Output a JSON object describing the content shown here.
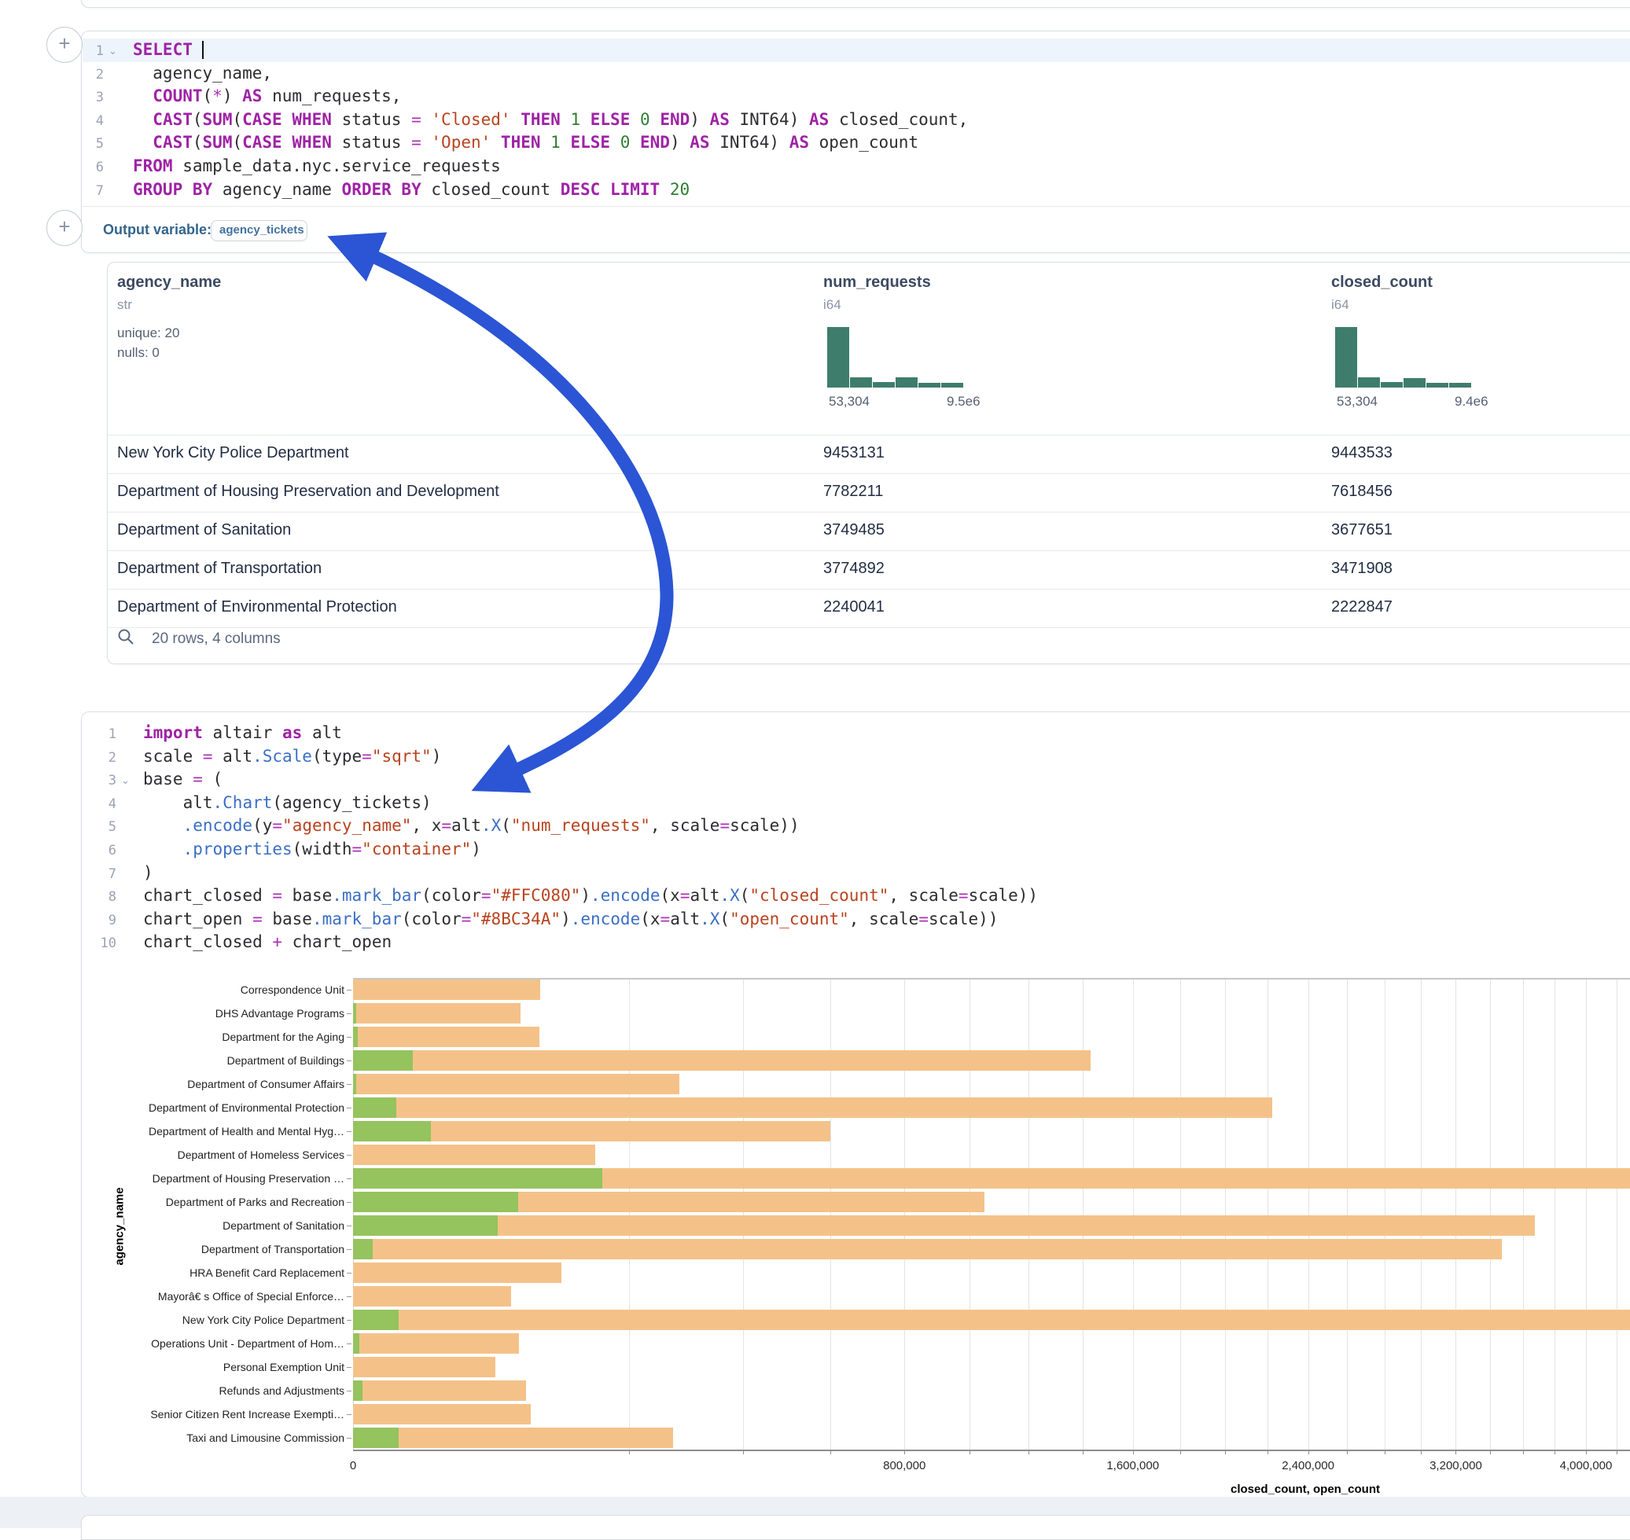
{
  "ui": {
    "plus_button_label": "+",
    "output_variable_label": "Output variable:",
    "output_variable_value": "agency_tickets",
    "table_footer": "20 rows, 4 columns",
    "annotation_arrow_color": "#2B55D4"
  },
  "sql_cell": {
    "line_numbers": [
      "1",
      "2",
      "3",
      "4",
      "5",
      "6",
      "7"
    ],
    "lines": [
      [
        [
          "k",
          "SELECT"
        ],
        [
          "d",
          " "
        ]
      ],
      [
        [
          "d",
          "  agency_name,"
        ]
      ],
      [
        [
          "d",
          "  "
        ],
        [
          "k",
          "COUNT"
        ],
        [
          "d",
          "("
        ],
        [
          "o",
          "*"
        ],
        [
          "d",
          ") "
        ],
        [
          "k",
          "AS"
        ],
        [
          "d",
          " num_requests,"
        ]
      ],
      [
        [
          "d",
          "  "
        ],
        [
          "k",
          "CAST"
        ],
        [
          "d",
          "("
        ],
        [
          "k",
          "SUM"
        ],
        [
          "d",
          "("
        ],
        [
          "k",
          "CASE"
        ],
        [
          "d",
          " "
        ],
        [
          "k",
          "WHEN"
        ],
        [
          "d",
          " status "
        ],
        [
          "o",
          "="
        ],
        [
          "d",
          " "
        ],
        [
          "s",
          "'Closed'"
        ],
        [
          "d",
          " "
        ],
        [
          "k",
          "THEN"
        ],
        [
          "d",
          " "
        ],
        [
          "n",
          "1"
        ],
        [
          "d",
          " "
        ],
        [
          "k",
          "ELSE"
        ],
        [
          "d",
          " "
        ],
        [
          "n",
          "0"
        ],
        [
          "d",
          " "
        ],
        [
          "k",
          "END"
        ],
        [
          "d",
          ") "
        ],
        [
          "k",
          "AS"
        ],
        [
          "d",
          " INT64) "
        ],
        [
          "k",
          "AS"
        ],
        [
          "d",
          " closed_count,"
        ]
      ],
      [
        [
          "d",
          "  "
        ],
        [
          "k",
          "CAST"
        ],
        [
          "d",
          "("
        ],
        [
          "k",
          "SUM"
        ],
        [
          "d",
          "("
        ],
        [
          "k",
          "CASE"
        ],
        [
          "d",
          " "
        ],
        [
          "k",
          "WHEN"
        ],
        [
          "d",
          " status "
        ],
        [
          "o",
          "="
        ],
        [
          "d",
          " "
        ],
        [
          "s",
          "'Open'"
        ],
        [
          "d",
          " "
        ],
        [
          "k",
          "THEN"
        ],
        [
          "d",
          " "
        ],
        [
          "n",
          "1"
        ],
        [
          "d",
          " "
        ],
        [
          "k",
          "ELSE"
        ],
        [
          "d",
          " "
        ],
        [
          "n",
          "0"
        ],
        [
          "d",
          " "
        ],
        [
          "k",
          "END"
        ],
        [
          "d",
          ") "
        ],
        [
          "k",
          "AS"
        ],
        [
          "d",
          " INT64) "
        ],
        [
          "k",
          "AS"
        ],
        [
          "d",
          " open_count"
        ]
      ],
      [
        [
          "k",
          "FROM"
        ],
        [
          "d",
          " sample_data.nyc.service_requests"
        ]
      ],
      [
        [
          "k",
          "GROUP"
        ],
        [
          "d",
          " "
        ],
        [
          "k",
          "BY"
        ],
        [
          "d",
          " agency_name "
        ],
        [
          "k",
          "ORDER"
        ],
        [
          "d",
          " "
        ],
        [
          "k",
          "BY"
        ],
        [
          "d",
          " closed_count "
        ],
        [
          "k",
          "DESC"
        ],
        [
          "d",
          " "
        ],
        [
          "k",
          "LIMIT"
        ],
        [
          "d",
          " "
        ],
        [
          "n",
          "20"
        ]
      ]
    ]
  },
  "python_cell": {
    "line_numbers": [
      "1",
      "2",
      "3",
      "4",
      "5",
      "6",
      "7",
      "8",
      "9",
      "10"
    ],
    "lines": [
      [
        [
          "k",
          "import"
        ],
        [
          "d",
          " altair "
        ],
        [
          "k",
          "as"
        ],
        [
          "d",
          " alt"
        ]
      ],
      [
        [
          "d",
          "scale "
        ],
        [
          "o",
          "="
        ],
        [
          "d",
          " alt"
        ],
        [
          "f",
          ".Scale"
        ],
        [
          "d",
          "(type"
        ],
        [
          "o",
          "="
        ],
        [
          "s",
          "\"sqrt\""
        ],
        [
          "d",
          ")"
        ]
      ],
      [
        [
          "d",
          "base "
        ],
        [
          "o",
          "="
        ],
        [
          "d",
          " ("
        ]
      ],
      [
        [
          "d",
          "    alt"
        ],
        [
          "f",
          ".Chart"
        ],
        [
          "d",
          "(agency_tickets)"
        ]
      ],
      [
        [
          "d",
          "    "
        ],
        [
          "f",
          ".encode"
        ],
        [
          "d",
          "(y"
        ],
        [
          "o",
          "="
        ],
        [
          "s",
          "\"agency_name\""
        ],
        [
          "d",
          ", x"
        ],
        [
          "o",
          "="
        ],
        [
          "d",
          "alt"
        ],
        [
          "f",
          ".X"
        ],
        [
          "d",
          "("
        ],
        [
          "s",
          "\"num_requests\""
        ],
        [
          "d",
          ", scale"
        ],
        [
          "o",
          "="
        ],
        [
          "d",
          "scale))"
        ]
      ],
      [
        [
          "d",
          "    "
        ],
        [
          "f",
          ".properties"
        ],
        [
          "d",
          "(width"
        ],
        [
          "o",
          "="
        ],
        [
          "s",
          "\"container\""
        ],
        [
          "d",
          ")"
        ]
      ],
      [
        [
          "d",
          ")"
        ]
      ],
      [
        [
          "d",
          "chart_closed "
        ],
        [
          "o",
          "="
        ],
        [
          "d",
          " base"
        ],
        [
          "f",
          ".mark_bar"
        ],
        [
          "d",
          "(color"
        ],
        [
          "o",
          "="
        ],
        [
          "s",
          "\"#FFC080\""
        ],
        [
          "d",
          ")"
        ],
        [
          "f",
          ".encode"
        ],
        [
          "d",
          "(x"
        ],
        [
          "o",
          "="
        ],
        [
          "d",
          "alt"
        ],
        [
          "f",
          ".X"
        ],
        [
          "d",
          "("
        ],
        [
          "s",
          "\"closed_count\""
        ],
        [
          "d",
          ", scale"
        ],
        [
          "o",
          "="
        ],
        [
          "d",
          "scale))"
        ]
      ],
      [
        [
          "d",
          "chart_open "
        ],
        [
          "o",
          "="
        ],
        [
          "d",
          " base"
        ],
        [
          "f",
          ".mark_bar"
        ],
        [
          "d",
          "(color"
        ],
        [
          "o",
          "="
        ],
        [
          "s",
          "\"#8BC34A\""
        ],
        [
          "d",
          ")"
        ],
        [
          "f",
          ".encode"
        ],
        [
          "d",
          "(x"
        ],
        [
          "o",
          "="
        ],
        [
          "d",
          "alt"
        ],
        [
          "f",
          ".X"
        ],
        [
          "d",
          "("
        ],
        [
          "s",
          "\"open_count\""
        ],
        [
          "d",
          ", scale"
        ],
        [
          "o",
          "="
        ],
        [
          "d",
          "scale))"
        ]
      ],
      [
        [
          "d",
          "chart_closed "
        ],
        [
          "o",
          "+"
        ],
        [
          "d",
          " chart_open"
        ]
      ]
    ]
  },
  "table": {
    "columns": [
      {
        "name": "agency_name",
        "type": "str",
        "stats": [
          "unique: 20",
          "nulls: 0"
        ]
      },
      {
        "name": "num_requests",
        "type": "i64",
        "histogram": {
          "heights": [
            100,
            17,
            9,
            17,
            8,
            8
          ],
          "color": "#3e7d6b",
          "min": "53,304",
          "max": "9.5e6"
        }
      },
      {
        "name": "closed_count",
        "type": "i64",
        "histogram": {
          "heights": [
            100,
            17,
            9,
            16,
            8,
            8
          ],
          "color": "#3e7d6b",
          "min": "53,304",
          "max": "9.4e6"
        }
      }
    ],
    "rows": [
      [
        "New York City Police Department",
        "9453131",
        "9443533"
      ],
      [
        "Department of Housing Preservation and Development",
        "7782211",
        "7618456"
      ],
      [
        "Department of Sanitation",
        "3749485",
        "3677651"
      ],
      [
        "Department of Transportation",
        "3774892",
        "3471908"
      ],
      [
        "Department of Environmental Protection",
        "2240041",
        "2222847"
      ]
    ]
  },
  "chart_data": {
    "type": "bar",
    "orientation": "horizontal",
    "x_scale": "sqrt",
    "xlabel": "closed_count, open_count",
    "ylabel": "agency_name",
    "x_major_ticks": [
      0,
      800000,
      1600000,
      2400000,
      3200000,
      4000000
    ],
    "x_major_tick_labels": [
      "0",
      "800,000",
      "1,600,000",
      "2,400,000",
      "3,200,000",
      "4,000,000"
    ],
    "x_minor_tick_step": 200000,
    "grid": true,
    "categories": [
      "Correspondence Unit",
      "DHS Advantage Programs",
      "Department for the Aging",
      "Department of Buildings",
      "Department of Consumer Affairs",
      "Department of Environmental Protection",
      "Department of Health and Mental Hyg…",
      "Department of Homeless Services",
      "Department of Housing Preservation …",
      "Department of Parks and Recreation",
      "Department of Sanitation",
      "Department of Transportation",
      "HRA Benefit Card Replacement",
      "Mayorâ€ s Office of Special Enforce…",
      "New York City Police Department",
      "Operations Unit - Department of Hom…",
      "Personal Exemption Unit",
      "Refunds and Adjustments",
      "Senior Citizen Rent Increase Exempti…",
      "Taxi and Limousine Commission"
    ],
    "series": [
      {
        "name": "closed_count",
        "color": "#F4C289",
        "values": [
          92000,
          74000,
          91000,
          1430000,
          280000,
          2222847,
          600000,
          154000,
          7618456,
          1050000,
          3677651,
          3471908,
          114000,
          66000,
          9443533,
          72500,
          53304,
          79000,
          83000,
          270000
        ]
      },
      {
        "name": "open_count",
        "color": "#95C35D",
        "values": [
          0,
          30,
          60,
          9500,
          20,
          5000,
          16000,
          0,
          163000,
          72000,
          55000,
          1000,
          0,
          0,
          5500,
          100,
          0,
          250,
          0,
          5500
        ]
      }
    ]
  }
}
